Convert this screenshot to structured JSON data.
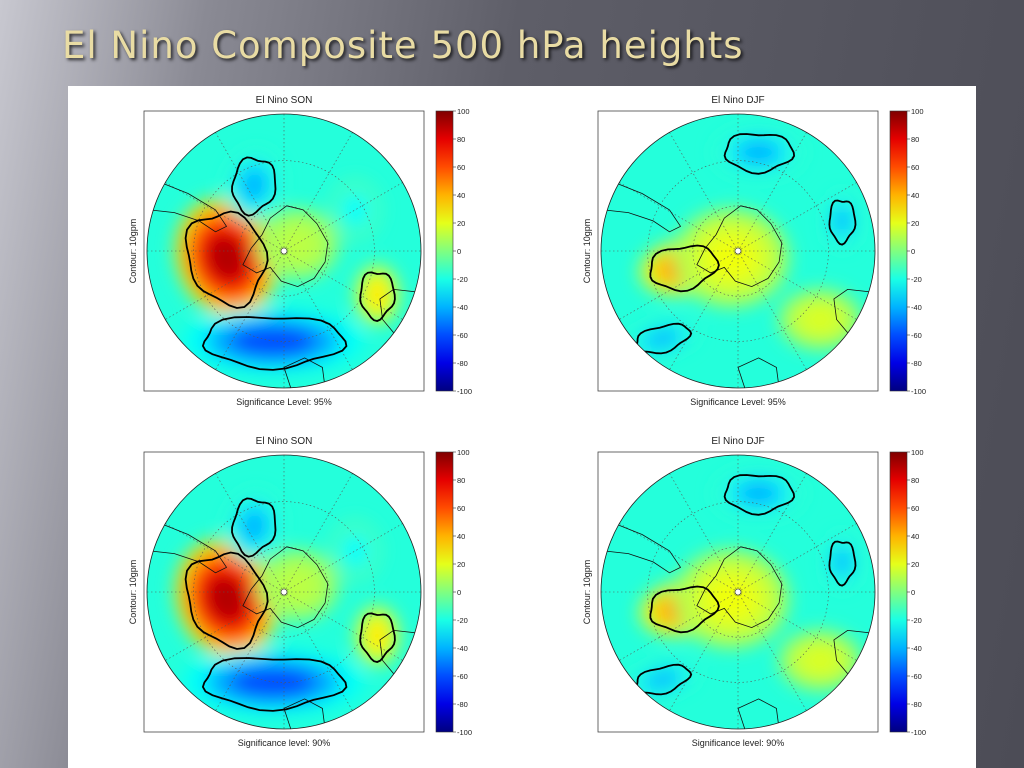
{
  "slide": {
    "title": "El Nino Composite 500 hPa heights"
  },
  "colors": {
    "slide_title": "#e9dca4",
    "coastline": "#000000",
    "significance_contour": "#000000"
  },
  "chart_data": [
    {
      "type": "heatmap",
      "projection": "south-polar-stereographic",
      "title": "El Nino SON",
      "ylabel": "Contour: 10gpm",
      "xlabel": "Significance Level: 95%",
      "colorbar": {
        "ticks": [
          100,
          80,
          60,
          40,
          20,
          0,
          -20,
          -40,
          -60,
          -80,
          -100
        ],
        "range": [
          -100,
          100
        ]
      },
      "features": [
        {
          "name": "positive anomaly",
          "quadrant": "left-center",
          "peak": 90
        },
        {
          "name": "negative anomaly",
          "quadrant": "bottom",
          "peak": -60
        },
        {
          "name": "negative anomaly",
          "quadrant": "upper-left",
          "peak": -40
        },
        {
          "name": "positive anomaly",
          "quadrant": "right",
          "peak": 30
        }
      ]
    },
    {
      "type": "heatmap",
      "projection": "south-polar-stereographic",
      "title": "El Nino DJF",
      "ylabel": "Contour: 10gpm",
      "xlabel": "Significance Level: 95%",
      "colorbar": {
        "ticks": [
          100,
          80,
          60,
          40,
          20,
          0,
          -20,
          -40,
          -60,
          -80,
          -100
        ],
        "range": [
          -100,
          100
        ]
      },
      "features": [
        {
          "name": "positive anomaly",
          "quadrant": "left-center",
          "peak": 50
        },
        {
          "name": "negative anomaly",
          "quadrant": "top",
          "peak": -40
        },
        {
          "name": "negative anomaly",
          "quadrant": "right",
          "peak": -40
        },
        {
          "name": "negative anomaly",
          "quadrant": "lower-left",
          "peak": -40
        }
      ]
    },
    {
      "type": "heatmap",
      "projection": "south-polar-stereographic",
      "title": "El Nino SON",
      "ylabel": "Contour: 10gpm",
      "xlabel": "Significance level: 90%",
      "colorbar": {
        "ticks": [
          100,
          80,
          60,
          40,
          20,
          0,
          -20,
          -40,
          -60,
          -80,
          -100
        ],
        "range": [
          -100,
          100
        ]
      },
      "features": [
        {
          "name": "positive anomaly",
          "quadrant": "left-center",
          "peak": 90
        },
        {
          "name": "negative anomaly",
          "quadrant": "bottom",
          "peak": -60
        },
        {
          "name": "negative anomaly",
          "quadrant": "upper-left",
          "peak": -40
        },
        {
          "name": "positive anomaly",
          "quadrant": "right",
          "peak": 30
        }
      ]
    },
    {
      "type": "heatmap",
      "projection": "south-polar-stereographic",
      "title": "El Nino DJF",
      "ylabel": "Contour: 10gpm",
      "xlabel": "Significance level: 90%",
      "colorbar": {
        "ticks": [
          100,
          80,
          60,
          40,
          20,
          0,
          -20,
          -40,
          -60,
          -80,
          -100
        ],
        "range": [
          -100,
          100
        ]
      },
      "features": [
        {
          "name": "positive anomaly",
          "quadrant": "left-center",
          "peak": 50
        },
        {
          "name": "negative anomaly",
          "quadrant": "top",
          "peak": -40
        },
        {
          "name": "negative anomaly",
          "quadrant": "right",
          "peak": -40
        },
        {
          "name": "negative anomaly",
          "quadrant": "lower-left",
          "peak": -40
        }
      ]
    }
  ]
}
